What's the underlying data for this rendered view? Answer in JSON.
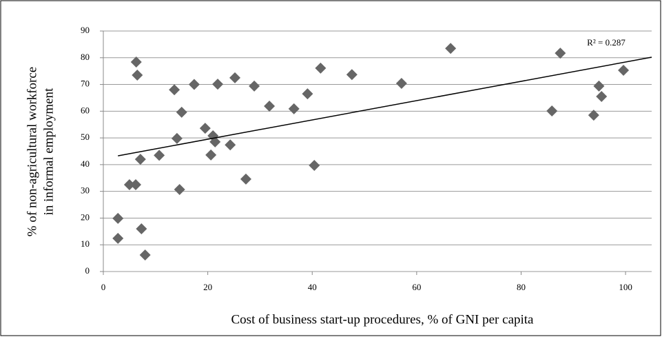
{
  "chart_data": {
    "type": "scatter",
    "x_label": "Cost of business start-up procedures, % of GNI per capita",
    "y_label": [
      "% of non-agricultural workforce",
      "in informal employment"
    ],
    "annotation": "R² = 0.287",
    "x": [
      2.8,
      2.8,
      6.3,
      6.5,
      5.0,
      6.2,
      7.1,
      7.3,
      8.0,
      10.7,
      13.6,
      14.1,
      14.6,
      15.0,
      17.4,
      19.5,
      20.6,
      21.0,
      21.4,
      21.9,
      24.3,
      25.2,
      27.3,
      28.9,
      31.8,
      36.5,
      39.1,
      40.4,
      41.6,
      47.6,
      57.1,
      66.5,
      85.9,
      87.5,
      93.9,
      94.9,
      95.4,
      99.6
    ],
    "y": [
      12.4,
      19.9,
      78.4,
      73.5,
      32.5,
      32.5,
      42.0,
      16.0,
      6.2,
      43.5,
      68.0,
      49.8,
      30.7,
      59.6,
      70.0,
      53.6,
      43.6,
      50.8,
      48.5,
      70.1,
      47.4,
      72.5,
      34.6,
      69.4,
      61.9,
      60.9,
      66.5,
      39.7,
      76.1,
      73.7,
      70.4,
      83.5,
      60.1,
      81.7,
      58.5,
      69.4,
      65.5,
      75.3
    ],
    "color": "#666666",
    "trendline": {
      "x": [
        2.8,
        105
      ],
      "y": [
        43.3,
        80.2
      ],
      "color": "#000000"
    },
    "xlim": [
      0,
      105
    ],
    "ylim": [
      0,
      90
    ],
    "xticks": [
      0,
      20,
      40,
      60,
      80,
      100
    ],
    "yticks": [
      0,
      10,
      20,
      30,
      40,
      50,
      60,
      70,
      80,
      90
    ],
    "grid": true
  }
}
